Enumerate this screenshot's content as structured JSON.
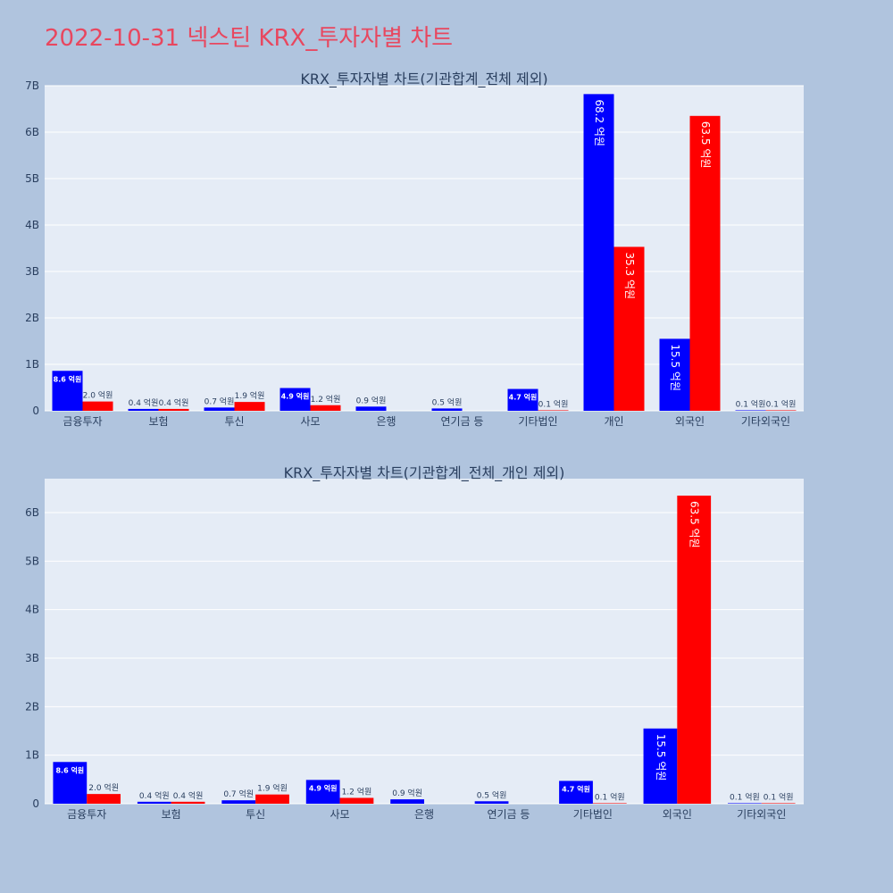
{
  "page_title": "2022-10-31 넥스틴 KRX_투자자별 차트",
  "colors": {
    "buy": "#0000ff",
    "sell": "#ff0000",
    "background": "#b0c4de",
    "plot_bg": "#e5ecf6",
    "title": "#e8475f"
  },
  "chart_data": [
    {
      "type": "bar",
      "title": "KRX_투자자별 차트(기관합계_전체 제외)",
      "categories": [
        "금융투자",
        "보험",
        "투신",
        "사모",
        "은행",
        "연기금 등",
        "기타법인",
        "개인",
        "외국인",
        "기타외국인"
      ],
      "ylim": [
        0,
        7000000000.0
      ],
      "yticks": [
        0,
        1000000000.0,
        2000000000.0,
        3000000000.0,
        4000000000.0,
        5000000000.0,
        6000000000.0,
        7000000000.0
      ],
      "ytick_labels": [
        "0",
        "1B",
        "2B",
        "3B",
        "4B",
        "5B",
        "6B",
        "7B"
      ],
      "series": [
        {
          "values": [
            860000000.0,
            40000000.0,
            70000000.0,
            490000000.0,
            90000000.0,
            50000000.0,
            470000000.0,
            6820000000.0,
            1550000000.0,
            10000000.0
          ],
          "labels": [
            "8.6 억원",
            "0.4 억원",
            "0.7 억원",
            "4.9 억원",
            "0.9 억원",
            "0.5 억원",
            "4.7 억원",
            "68.2 억원",
            "15.5 억원",
            "0.1 억원"
          ]
        },
        {
          "values": [
            200000000.0,
            40000000.0,
            190000000.0,
            120000000.0,
            0,
            0,
            10000000.0,
            3530000000.0,
            6350000000.0,
            10000000.0
          ],
          "labels": [
            "2.0 억원",
            "0.4 억원",
            "1.9 억원",
            "1.2 억원",
            "",
            "",
            "0.1 억원",
            "35.3 억원",
            "63.5 억원",
            "0.1 억원"
          ]
        }
      ]
    },
    {
      "type": "bar",
      "title": "KRX_투자자별 차트(기관합계_전체_개인 제외)",
      "categories": [
        "금융투자",
        "보험",
        "투신",
        "사모",
        "은행",
        "연기금 등",
        "기타법인",
        "외국인",
        "기타외국인"
      ],
      "ylim": [
        0,
        6700000000.0
      ],
      "yticks": [
        0,
        1000000000.0,
        2000000000.0,
        3000000000.0,
        4000000000.0,
        5000000000.0,
        6000000000.0
      ],
      "ytick_labels": [
        "0",
        "1B",
        "2B",
        "3B",
        "4B",
        "5B",
        "6B"
      ],
      "series": [
        {
          "values": [
            860000000.0,
            40000000.0,
            70000000.0,
            490000000.0,
            90000000.0,
            50000000.0,
            470000000.0,
            1550000000.0,
            10000000.0
          ],
          "labels": [
            "8.6 억원",
            "0.4 억원",
            "0.7 억원",
            "4.9 억원",
            "0.9 억원",
            "0.5 억원",
            "4.7 억원",
            "15.5 억원",
            "0.1 억원"
          ]
        },
        {
          "values": [
            200000000.0,
            40000000.0,
            190000000.0,
            120000000.0,
            0,
            0,
            10000000.0,
            6350000000.0,
            10000000.0
          ],
          "labels": [
            "2.0 억원",
            "0.4 억원",
            "1.9 억원",
            "1.2 억원",
            "",
            "",
            "0.1 억원",
            "63.5 억원",
            "0.1 억원"
          ]
        }
      ]
    }
  ]
}
